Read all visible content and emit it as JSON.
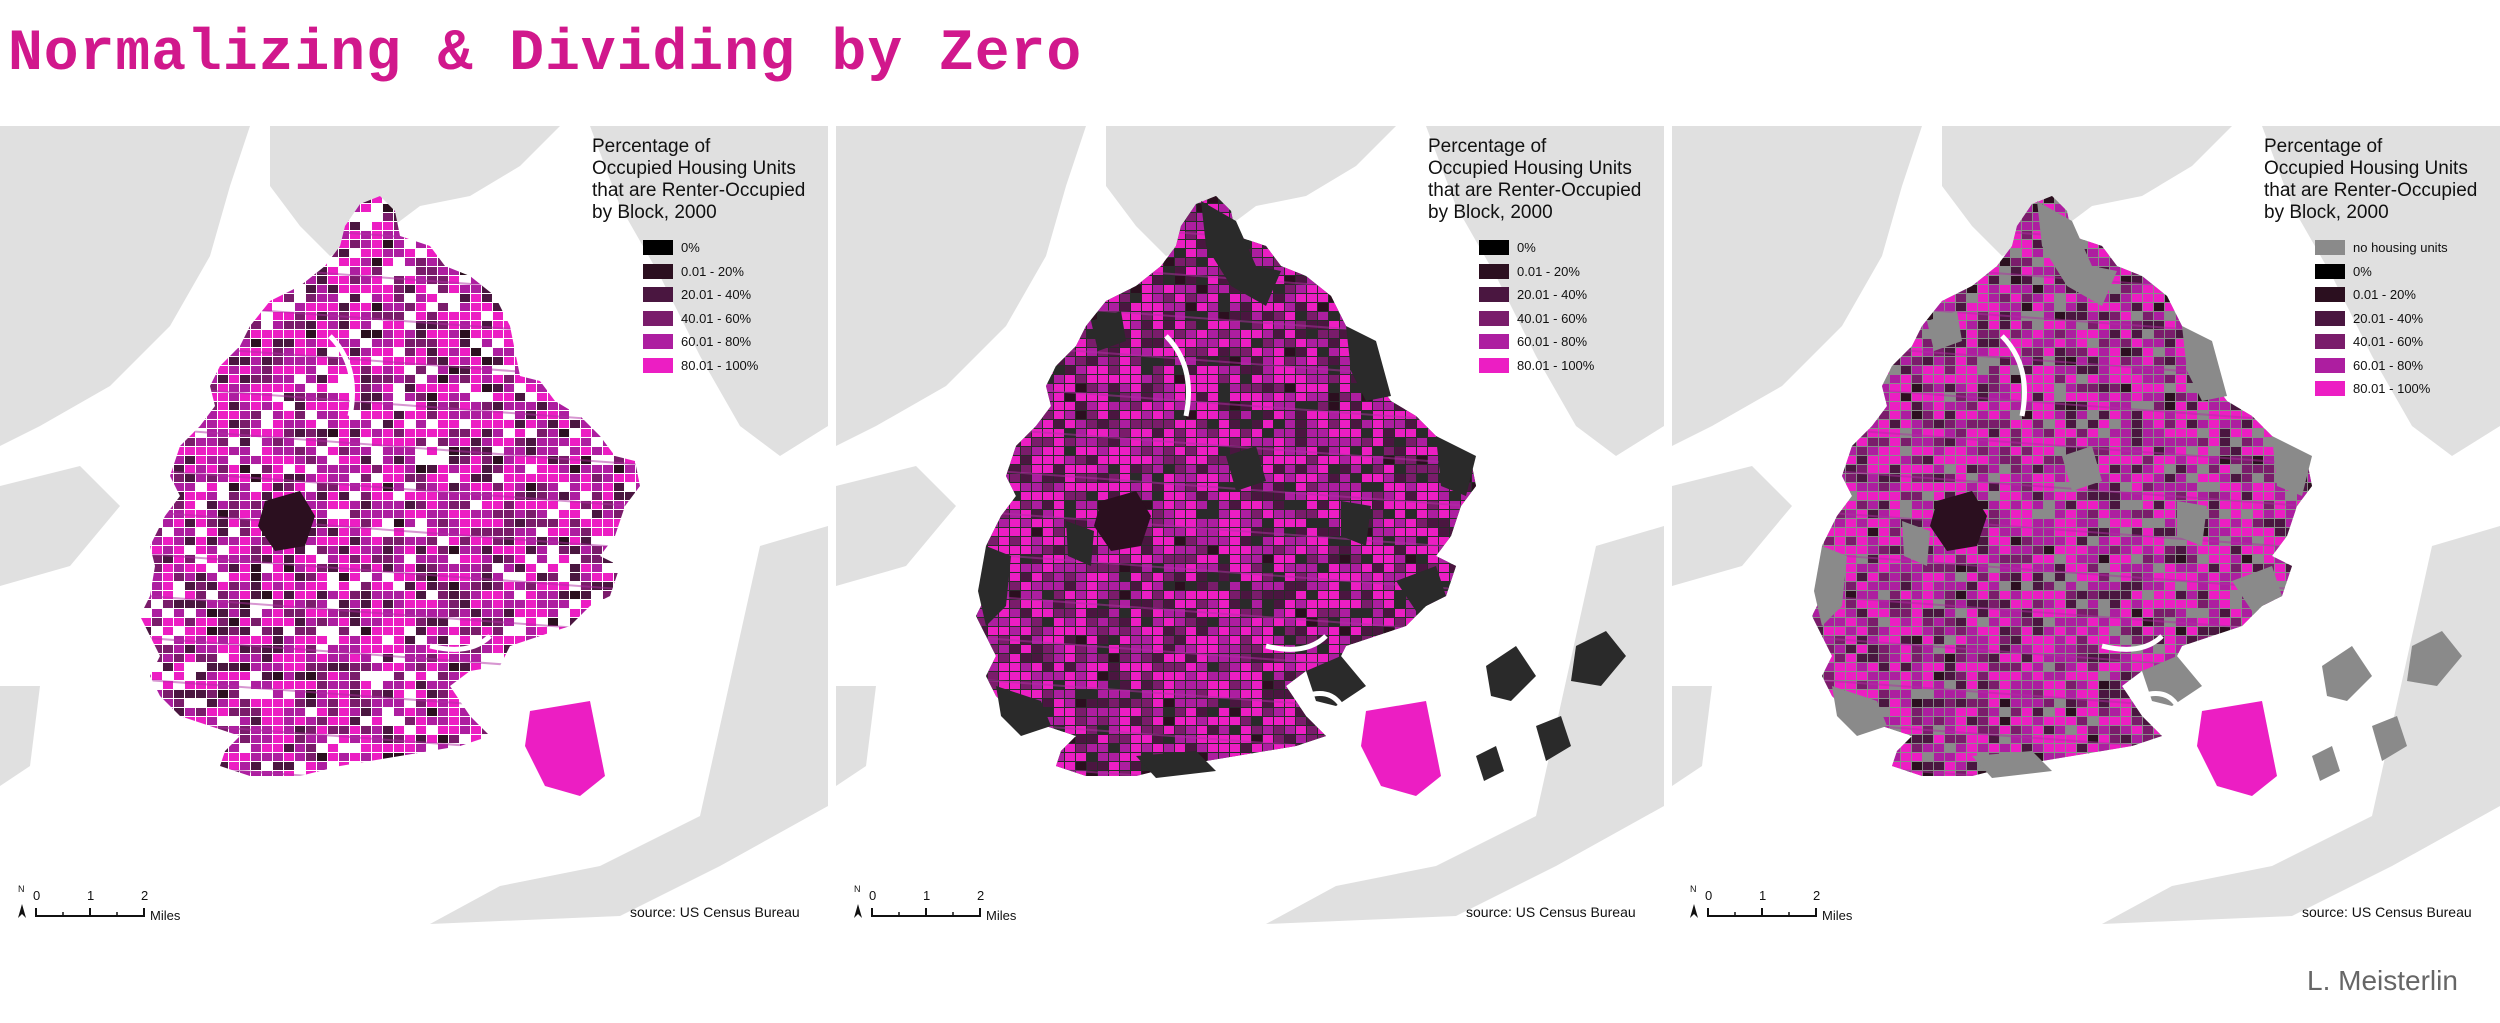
{
  "page": {
    "title": "Normalizing & Dividing by Zero",
    "credit": "L. Meisterlin"
  },
  "colors": {
    "accent": "#d1188c",
    "water_land": "#e0e0e0",
    "class_0": "#000000",
    "class_0_20": "#2b0f1f",
    "class_20_40": "#4a1640",
    "class_40_60": "#7a1c6b",
    "class_60_80": "#ad1ea0",
    "class_80_100": "#ec1ec3",
    "no_housing": "#8a8a8a",
    "zero_dark": "#2a2a2a"
  },
  "maps": [
    {
      "id": "left",
      "legend_title": "Percentage of\nOccupied Housing Units\nthat are Renter-Occupied\nby Block, 2000",
      "legend_items": [
        {
          "label": "0%",
          "color": "#000000"
        },
        {
          "label": "0.01 - 20%",
          "color": "#2b0f1f"
        },
        {
          "label": "20.01 - 40%",
          "color": "#4a1640"
        },
        {
          "label": "40.01 - 60%",
          "color": "#7a1c6b"
        },
        {
          "label": "60.01 - 80%",
          "color": "#ad1ea0"
        },
        {
          "label": "80.01 - 100%",
          "color": "#ec1ec3"
        }
      ],
      "source": "source: US Census Bureau",
      "scale": {
        "north": "N",
        "ticks": [
          "0",
          "1",
          "2"
        ],
        "unit": "Miles"
      },
      "zero_fill": null
    },
    {
      "id": "middle",
      "legend_title": "Percentage of\nOccupied Housing Units\nthat are Renter-Occupied\nby Block, 2000",
      "legend_items": [
        {
          "label": "0%",
          "color": "#000000"
        },
        {
          "label": "0.01 - 20%",
          "color": "#2b0f1f"
        },
        {
          "label": "20.01 - 40%",
          "color": "#4a1640"
        },
        {
          "label": "40.01 - 60%",
          "color": "#7a1c6b"
        },
        {
          "label": "60.01 - 80%",
          "color": "#ad1ea0"
        },
        {
          "label": "80.01 - 100%",
          "color": "#ec1ec3"
        }
      ],
      "source": "source: US Census Bureau",
      "scale": {
        "north": "N",
        "ticks": [
          "0",
          "1",
          "2"
        ],
        "unit": "Miles"
      },
      "zero_fill": "#2a2a2a"
    },
    {
      "id": "right",
      "legend_title": "Percentage of\nOccupied Housing Units\nthat are Renter-Occupied\nby Block, 2000",
      "legend_items": [
        {
          "label": "no housing units",
          "color": "#8a8a8a"
        },
        {
          "label": "0%",
          "color": "#000000"
        },
        {
          "label": "0.01 - 20%",
          "color": "#2b0f1f"
        },
        {
          "label": "20.01 - 40%",
          "color": "#4a1640"
        },
        {
          "label": "40.01 - 60%",
          "color": "#7a1c6b"
        },
        {
          "label": "60.01 - 80%",
          "color": "#ad1ea0"
        },
        {
          "label": "80.01 - 100%",
          "color": "#ec1ec3"
        }
      ],
      "source": "source: US Census Bureau",
      "scale": {
        "north": "N",
        "ticks": [
          "0",
          "1",
          "2"
        ],
        "unit": "Miles"
      },
      "zero_fill": "#8a8a8a"
    }
  ]
}
